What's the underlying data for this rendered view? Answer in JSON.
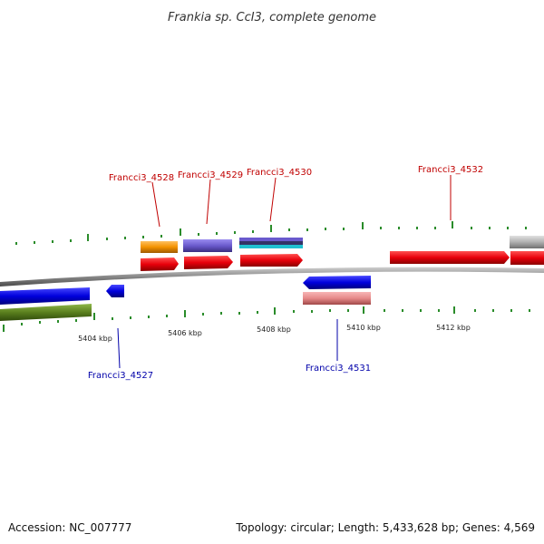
{
  "title": "Frankia sp. CcI3, complete genome",
  "footer": {
    "accession": "Accession: NC_007777",
    "summary": "Topology: circular; Length: 5,433,628 bp; Genes: 4,569"
  },
  "scale_labels": [
    "5404 kbp",
    "5406 kbp",
    "5408 kbp",
    "5410 kbp",
    "5412 kbp"
  ],
  "forward_gene_labels": [
    "Francci3_4528",
    "Francci3_4529",
    "Francci3_4530",
    "Francci3_4532"
  ],
  "reverse_gene_labels": [
    "Francci3_4527",
    "Francci3_4531"
  ],
  "colors": {
    "cds_forward": "#e8000b",
    "cds_reverse": "#0000dd",
    "orange_feature": "#f39200",
    "purple_feature": "#6a5acd",
    "pink_feature": "#e68a8a",
    "green_feature": "#5a7f1e",
    "grey_feature": "#b0b0b0",
    "backbone": "#888888",
    "tick": "#2a8c2a"
  }
}
